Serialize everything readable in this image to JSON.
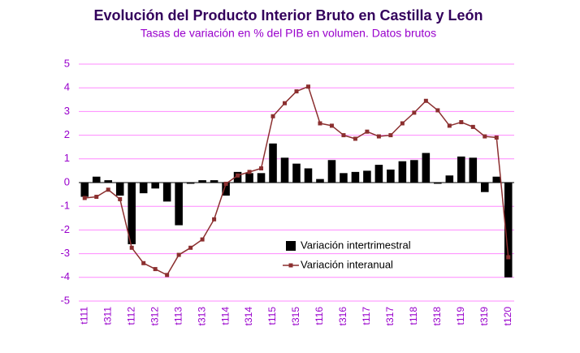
{
  "chart_data": {
    "type": "combo",
    "title": "Evolución del Producto Interior Bruto en Castilla y León",
    "subtitle": "Tasas de variación en % del PIB en volumen. Datos brutos",
    "categories": [
      "t111",
      null,
      "t311",
      null,
      "t112",
      null,
      "t312",
      null,
      "t113",
      null,
      "t313",
      null,
      "t114",
      null,
      "t314",
      null,
      "t115",
      null,
      "t315",
      null,
      "t116",
      null,
      "t316",
      null,
      "t117",
      null,
      "t317",
      null,
      "t118",
      null,
      "t318",
      null,
      "t119",
      null,
      "t319",
      null,
      "t120"
    ],
    "series": [
      {
        "name": "Variación intertrimestral",
        "type": "bar",
        "color": "#000000",
        "values": [
          -0.6,
          0.25,
          0.1,
          -0.55,
          -2.6,
          -0.45,
          -0.25,
          -0.8,
          -1.8,
          -0.05,
          0.1,
          0.1,
          -0.55,
          0.45,
          0.4,
          0.4,
          1.65,
          1.05,
          0.8,
          0.6,
          0.15,
          0.95,
          0.4,
          0.45,
          0.5,
          0.75,
          0.55,
          0.9,
          0.95,
          1.25,
          -0.05,
          0.3,
          1.1,
          1.05,
          -0.4,
          0.25,
          -4.0
        ]
      },
      {
        "name": "Variación interanual",
        "type": "line",
        "color": "#8b2f2f",
        "values": [
          -0.65,
          -0.6,
          -0.3,
          -0.7,
          -2.75,
          -3.4,
          -3.65,
          -3.9,
          -3.05,
          -2.75,
          -2.4,
          -1.55,
          -0.05,
          0.3,
          0.45,
          0.6,
          2.8,
          3.35,
          3.85,
          4.05,
          2.5,
          2.4,
          2.0,
          1.85,
          2.15,
          1.95,
          2.0,
          2.5,
          2.95,
          3.45,
          3.05,
          2.4,
          2.55,
          2.35,
          1.95,
          1.9,
          -3.15
        ]
      }
    ],
    "ylim": [
      -5,
      5
    ],
    "yticks": [
      -5,
      -4,
      -3,
      -2,
      -1,
      0,
      1,
      2,
      3,
      4,
      5
    ],
    "grid": true,
    "legend": "bottom"
  }
}
